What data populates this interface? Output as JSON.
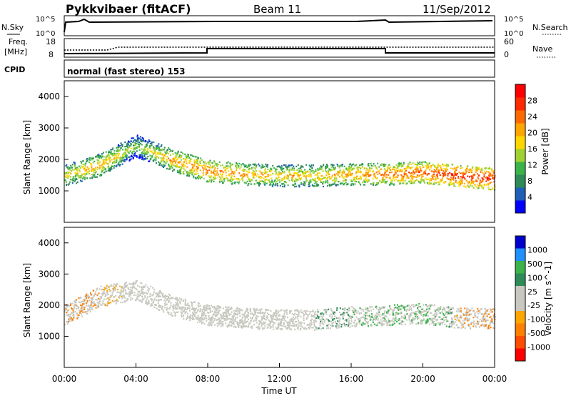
{
  "header": {
    "station": "Pykkvibaer (fitACF)",
    "beam": "Beam 11",
    "date": "11/Sep/2012"
  },
  "panels": {
    "noise": {
      "left_label": "N.Sky",
      "right_label": "N.Search",
      "tick_top": "10^5",
      "tick_bottom": "10^0"
    },
    "freq": {
      "left_label_1": "Freq.",
      "left_label_2": "[MHz]",
      "right_label": "Nave",
      "left_ticks": [
        "18",
        "8"
      ],
      "right_ticks": [
        "60",
        "0"
      ],
      "freq_range_mhz": [
        8,
        18
      ],
      "nave_range": [
        0,
        60
      ]
    },
    "cpid": {
      "label": "CPID",
      "mode_text": "normal (fast stereo) 153"
    }
  },
  "colors": {
    "power_scale": [
      "#0000ff",
      "#1e5fb8",
      "#2e8b57",
      "#3cb34a",
      "#a0d232",
      "#ffd700",
      "#ffa500",
      "#ff6a00",
      "#ff2a00",
      "#ff0000"
    ],
    "velocity_scale": [
      "#ff0000",
      "#ff4d00",
      "#ff7f00",
      "#ffa500",
      "#c8c8c0",
      "#c8c8c0",
      "#2e8b57",
      "#3cb34a",
      "#1e90ff",
      "#0000cd"
    ],
    "ground_scatter": "#c8c8c0"
  },
  "chart_data": [
    {
      "type": "heatmap",
      "title": "Power",
      "xlabel": "Time UT",
      "ylabel": "Slant Range [km]",
      "xlim_hours": [
        0,
        24
      ],
      "ylim": [
        0,
        4500
      ],
      "x_ticks": [
        "00:00",
        "04:00",
        "08:00",
        "12:00",
        "16:00",
        "20:00",
        "00:00"
      ],
      "y_ticks": [
        "1000",
        "2000",
        "3000",
        "4000"
      ],
      "colorbar": {
        "label": "Power [dB]",
        "range": [
          0,
          32
        ],
        "ticks": [
          "4",
          "8",
          "12",
          "16",
          "20",
          "24",
          "28"
        ]
      },
      "bands": [
        {
          "hours": [
            0,
            2,
            4,
            6,
            8,
            10,
            12,
            14,
            16,
            18,
            20,
            22,
            24
          ],
          "center_km": [
            1500,
            1850,
            2450,
            2000,
            1650,
            1550,
            1500,
            1500,
            1550,
            1550,
            1600,
            1500,
            1400
          ],
          "power_db": [
            18,
            22,
            14,
            22,
            24,
            22,
            20,
            20,
            22,
            24,
            26,
            28,
            28
          ]
        }
      ]
    },
    {
      "type": "heatmap",
      "title": "Velocity",
      "xlabel": "Time UT",
      "ylabel": "Slant Range [km]",
      "xlim_hours": [
        0,
        24
      ],
      "ylim": [
        0,
        4500
      ],
      "x_ticks": [
        "00:00",
        "04:00",
        "08:00",
        "12:00",
        "16:00",
        "20:00",
        "00:00"
      ],
      "y_ticks": [
        "1000",
        "2000",
        "3000",
        "4000"
      ],
      "colorbar": {
        "label": "Velocity [m s^-1]",
        "ticks": [
          "1000",
          "500",
          "100",
          "25",
          "-25",
          "-100",
          "-500",
          "-1000"
        ]
      },
      "bands": [
        {
          "hours": [
            0,
            2,
            4,
            6,
            8,
            10,
            12,
            14,
            16,
            18,
            20,
            22,
            24
          ],
          "center_km": [
            1700,
            2300,
            2500,
            2000,
            1700,
            1600,
            1550,
            1550,
            1650,
            1700,
            1750,
            1600,
            1600
          ],
          "velocity_ms": [
            -500,
            -100,
            25,
            0,
            0,
            0,
            0,
            25,
            100,
            200,
            500,
            -100,
            -500
          ]
        }
      ]
    }
  ]
}
